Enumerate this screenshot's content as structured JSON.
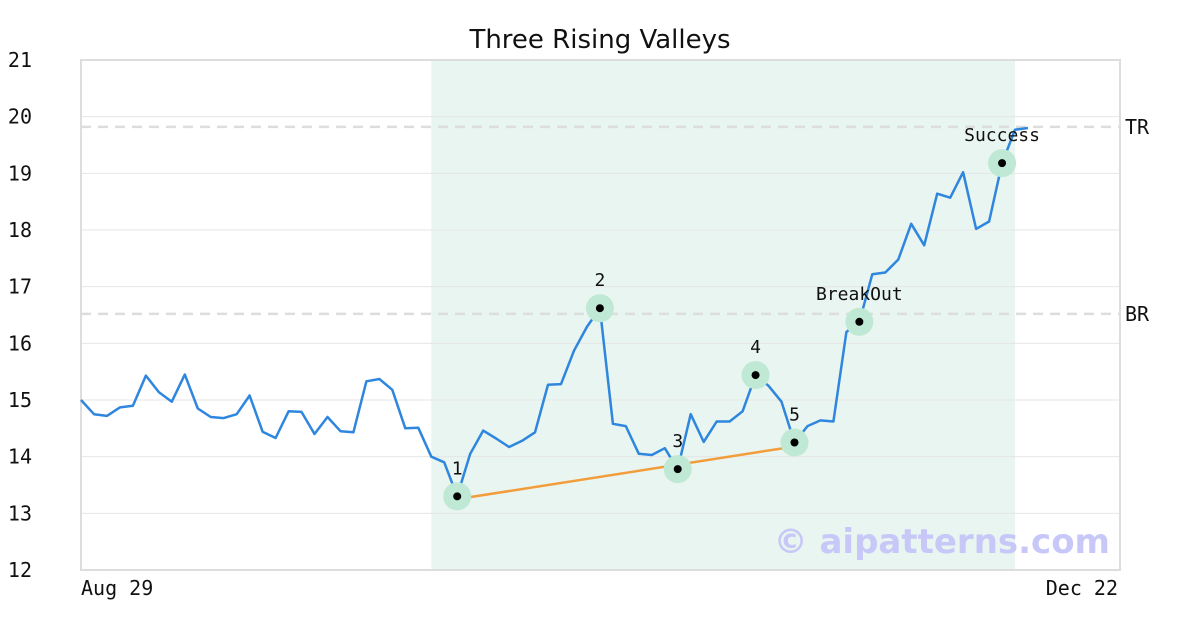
{
  "chart_data": {
    "type": "line",
    "title": "Three Rising Valleys",
    "x_tick_labels": [
      "Aug 29",
      "Dec 22"
    ],
    "ylim": [
      12,
      21
    ],
    "y_ticks": [
      "12",
      "13",
      "14",
      "15",
      "16",
      "17",
      "18",
      "19",
      "20",
      "21"
    ],
    "grid": true,
    "series": [
      {
        "color": "#2e86de",
        "values": [
          15.0,
          14.75,
          14.72,
          14.87,
          14.9,
          15.43,
          15.14,
          14.97,
          15.45,
          14.85,
          14.7,
          14.68,
          14.75,
          15.08,
          14.44,
          14.33,
          14.8,
          14.79,
          14.4,
          14.7,
          14.45,
          14.43,
          15.33,
          15.37,
          15.18,
          14.5,
          14.51,
          14.0,
          13.9,
          13.3,
          14.05,
          14.46,
          14.32,
          14.17,
          14.28,
          14.43,
          15.27,
          15.28,
          15.87,
          16.29,
          16.62,
          14.58,
          14.54,
          14.05,
          14.03,
          14.15,
          13.78,
          14.75,
          14.26,
          14.62,
          14.62,
          14.8,
          15.44,
          15.25,
          14.97,
          14.25,
          14.54,
          14.64,
          14.62,
          16.2,
          16.38,
          17.22,
          17.25,
          17.48,
          18.11,
          17.73,
          18.64,
          18.57,
          19.02,
          18.02,
          18.15,
          19.18,
          19.77,
          19.8
        ]
      }
    ],
    "shaded_region": {
      "from_index": 27,
      "to_index": 72,
      "color": "#e8f5f0"
    },
    "levels": [
      {
        "label": "TR",
        "y": 19.82
      },
      {
        "label": "BR",
        "y": 16.52
      }
    ],
    "points": [
      {
        "label": "1",
        "index": 29,
        "y": 13.3
      },
      {
        "label": "2",
        "index": 40,
        "y": 16.62
      },
      {
        "label": "3",
        "index": 46,
        "y": 13.78
      },
      {
        "label": "4",
        "index": 52,
        "y": 15.44
      },
      {
        "label": "5",
        "index": 55,
        "y": 14.25
      },
      {
        "label": "BreakOut",
        "index": 60,
        "y": 16.38
      },
      {
        "label": "Success",
        "index": 71,
        "y": 19.18
      }
    ],
    "support_line": {
      "color": "#f39c3c",
      "from": {
        "index": 29,
        "y": 13.25
      },
      "to": {
        "index": 55,
        "y": 14.18
      }
    },
    "watermark": "© aipatterns.com",
    "colors": {
      "marker_ring": "#bfe9d4",
      "marker_dot": "#000000",
      "level_line": "#dddddd",
      "grid": "#e6e6e6",
      "frame": "#dddddd"
    }
  }
}
